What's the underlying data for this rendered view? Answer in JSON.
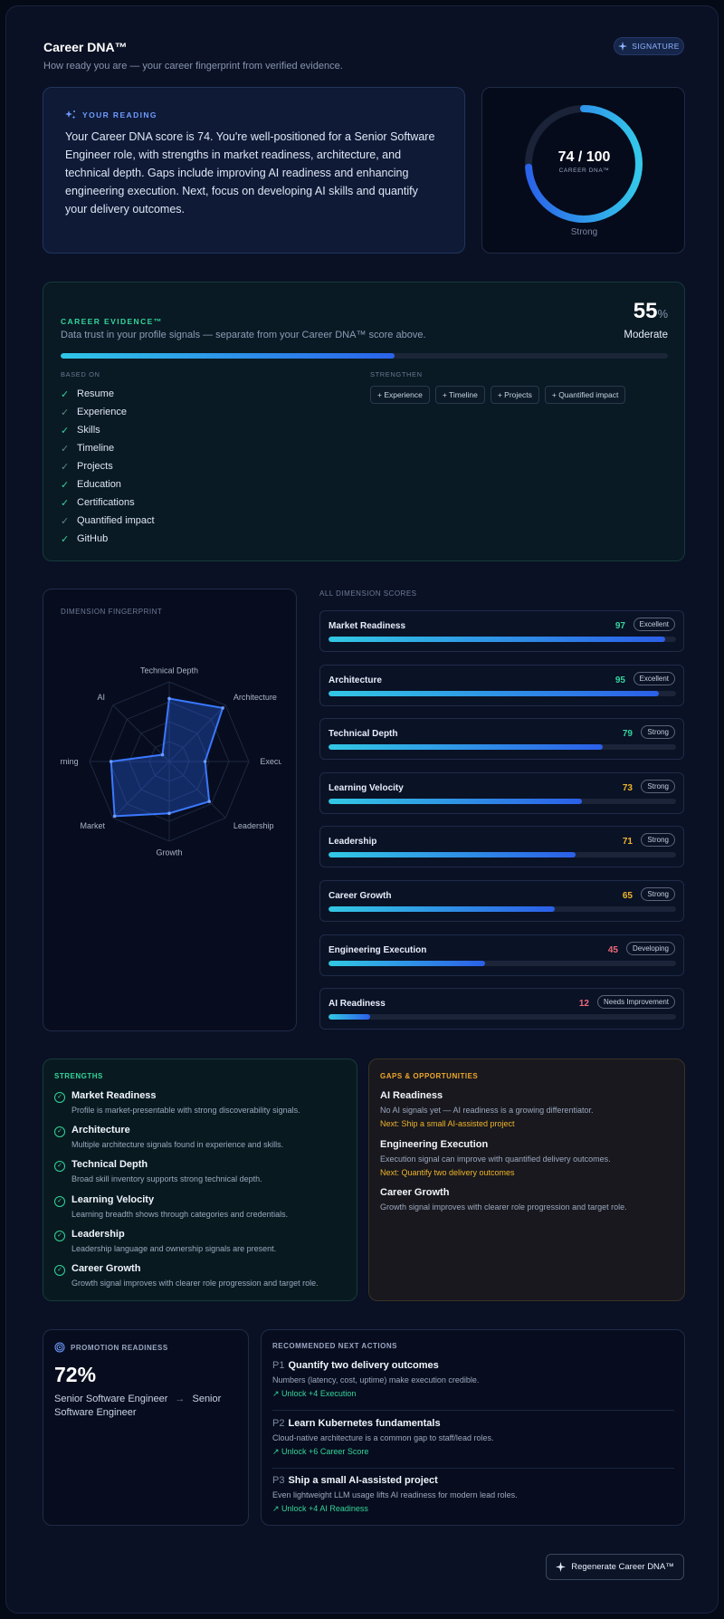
{
  "header": {
    "title": "Career DNA™",
    "subtitle": "How ready you are — your career fingerprint from verified evidence.",
    "badge": "SIGNATURE"
  },
  "reading": {
    "label": "YOUR READING",
    "text": "Your Career DNA score is 74. You're well-positioned for a Senior Software Engineer role, with strengths in market readiness, architecture, and technical depth. Gaps include improving AI readiness and enhancing engineering execution. Next, focus on developing AI skills and quantify your delivery outcomes."
  },
  "score": {
    "display": "74 / 100",
    "value": 74,
    "max": 100,
    "label": "CAREER DNA™",
    "status": "Strong"
  },
  "evidence": {
    "label": "CAREER EVIDENCE™",
    "description": "Data trust in your profile signals — separate from your Career DNA™ score above.",
    "percent": "55",
    "percent_symbol": "%",
    "percent_value": 55,
    "status": "Moderate",
    "based_on_label": "BASED ON",
    "based_on": [
      {
        "label": "Resume",
        "strong": true
      },
      {
        "label": "Experience",
        "strong": false
      },
      {
        "label": "Skills",
        "strong": true
      },
      {
        "label": "Timeline",
        "strong": false
      },
      {
        "label": "Projects",
        "strong": false
      },
      {
        "label": "Education",
        "strong": true
      },
      {
        "label": "Certifications",
        "strong": true
      },
      {
        "label": "Quantified impact",
        "strong": false
      },
      {
        "label": "GitHub",
        "strong": true
      }
    ],
    "strengthen_label": "STRENGTHEN",
    "strengthen": [
      "+ Experience",
      "+ Timeline",
      "+ Projects",
      "+ Quantified impact"
    ]
  },
  "fingerprint": {
    "label": "DIMENSION FINGERPRINT",
    "axes": [
      "Technical Depth",
      "Architecture",
      "Execution",
      "Leadership",
      "Growth",
      "Market",
      "Learning",
      "AI"
    ],
    "values": [
      79,
      95,
      45,
      71,
      65,
      97,
      73,
      12
    ]
  },
  "dimensions": {
    "label": "ALL DIMENSION SCORES",
    "items": [
      {
        "name": "Market Readiness",
        "score": "97",
        "value": 97,
        "badge": "Excellent",
        "color": "#34d49a"
      },
      {
        "name": "Architecture",
        "score": "95",
        "value": 95,
        "badge": "Excellent",
        "color": "#34d49a"
      },
      {
        "name": "Technical Depth",
        "score": "79",
        "value": 79,
        "badge": "Strong",
        "color": "#34d49a"
      },
      {
        "name": "Learning Velocity",
        "score": "73",
        "value": 73,
        "badge": "Strong",
        "color": "#f0b429"
      },
      {
        "name": "Leadership",
        "score": "71",
        "value": 71,
        "badge": "Strong",
        "color": "#f0b429"
      },
      {
        "name": "Career Growth",
        "score": "65",
        "value": 65,
        "badge": "Strong",
        "color": "#f0b429"
      },
      {
        "name": "Engineering Execution",
        "score": "45",
        "value": 45,
        "badge": "Developing",
        "color": "#f06a7a"
      },
      {
        "name": "AI Readiness",
        "score": "12",
        "value": 12,
        "badge": "Needs Improvement",
        "color": "#f06a7a"
      }
    ]
  },
  "strengths": {
    "label": "STRENGTHS",
    "items": [
      {
        "title": "Market Readiness",
        "desc": "Profile is market-presentable with strong discoverability signals."
      },
      {
        "title": "Architecture",
        "desc": "Multiple architecture signals found in experience and skills."
      },
      {
        "title": "Technical Depth",
        "desc": "Broad skill inventory supports strong technical depth."
      },
      {
        "title": "Learning Velocity",
        "desc": "Learning breadth shows through categories and credentials."
      },
      {
        "title": "Leadership",
        "desc": "Leadership language and ownership signals are present."
      },
      {
        "title": "Career Growth",
        "desc": "Growth signal improves with clearer role progression and target role."
      }
    ]
  },
  "gaps": {
    "label": "GAPS & OPPORTUNITIES",
    "items": [
      {
        "title": "AI Readiness",
        "desc": "No AI signals yet — AI readiness is a growing differentiator.",
        "next": "Next: Ship a small AI-assisted project"
      },
      {
        "title": "Engineering Execution",
        "desc": "Execution signal can improve with quantified delivery outcomes.",
        "next": "Next: Quantify two delivery outcomes"
      },
      {
        "title": "Career Growth",
        "desc": "Growth signal improves with clearer role progression and target role.",
        "next": ""
      }
    ]
  },
  "promotion": {
    "label": "PROMOTION READINESS",
    "percent": "72%",
    "from": "Senior Software Engineer",
    "arrow": "→",
    "to": "Senior Software Engineer"
  },
  "actions": {
    "label": "RECOMMENDED NEXT ACTIONS",
    "items": [
      {
        "priority": "P1",
        "title": "Quantify two delivery outcomes",
        "desc": "Numbers (latency, cost, uptime) make execution credible.",
        "unlock": "↗ Unlock +4 Execution"
      },
      {
        "priority": "P2",
        "title": "Learn Kubernetes fundamentals",
        "desc": "Cloud-native architecture is a common gap to staff/lead roles.",
        "unlock": "↗ Unlock +6 Career Score"
      },
      {
        "priority": "P3",
        "title": "Ship a small AI-assisted project",
        "desc": "Even lightweight LLM usage lifts AI readiness for modern lead roles.",
        "unlock": "↗ Unlock +4 AI Readiness"
      }
    ]
  },
  "regenerate_label": "Regenerate Career DNA™",
  "colors": {
    "accent": "#2b63ea",
    "cyan": "#2fc6e8",
    "success": "#34d49a",
    "warning": "#f0b429",
    "danger": "#f06a7a"
  }
}
